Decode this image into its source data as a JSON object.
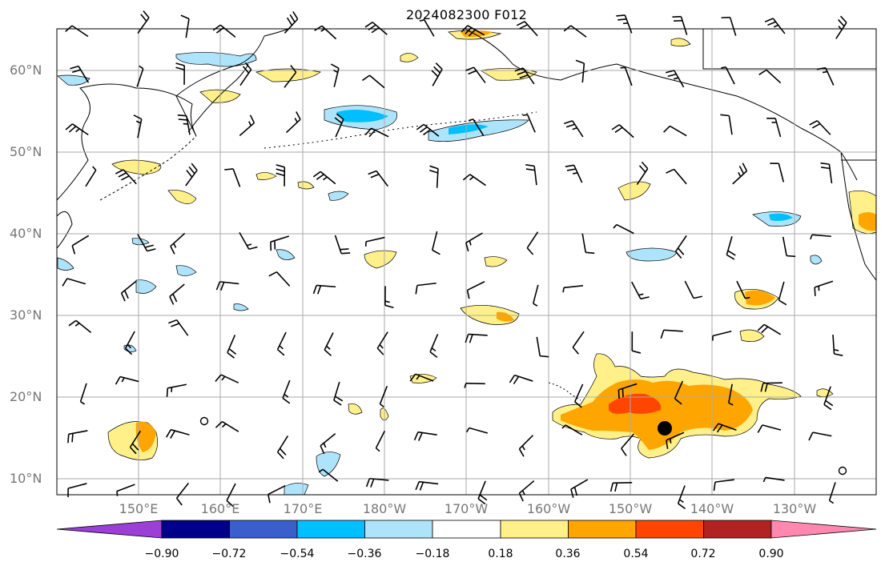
{
  "title": "2024082300 F012",
  "lat_labels": [
    "60°N",
    "50°N",
    "40°N",
    "30°N",
    "20°N",
    "10°N"
  ],
  "lon_labels": [
    "150°E",
    "160°E",
    "170°E",
    "180°W",
    "170°W",
    "160°W",
    "150°W",
    "140°W",
    "130°W"
  ],
  "colorbar": {
    "ticks": [
      "−0.90",
      "−0.72",
      "−0.54",
      "−0.36",
      "−0.18",
      "0.18",
      "0.36",
      "0.54",
      "0.72",
      "0.90"
    ],
    "colors": [
      "#9b3fd6",
      "#00008b",
      "#3a5fcd",
      "#00bfff",
      "#aee4fb",
      "#ffffff",
      "#fff08a",
      "#ffa500",
      "#ff4500",
      "#b22222",
      "#ff88b0"
    ]
  },
  "colors": {
    "light_blue": "#aee4fb",
    "blue": "#00bfff",
    "yellow": "#fff08a",
    "orange": "#ffa500",
    "red": "#ff4500"
  },
  "map": {
    "extent_lon": [
      140,
      242
    ],
    "extent_lat": [
      8,
      65
    ],
    "gridlines": "on"
  }
}
